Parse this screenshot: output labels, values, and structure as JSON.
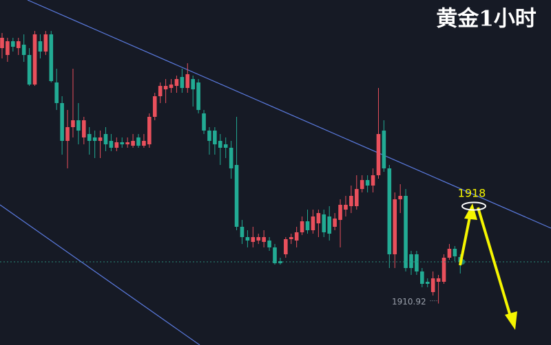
{
  "chart_data": {
    "type": "candlestick",
    "title": "黄金1小时",
    "ylim": [
      1907.9,
      1933
    ],
    "up_color": "#e9505c",
    "down_color": "#22ab94",
    "open": [
      1929.5,
      1929,
      1930,
      1929.5,
      1929.75,
      1929,
      1926.85,
      1930,
      1929.25,
      1930.5,
      1927,
      1925.5,
      1922.75,
      1923.75,
      1924.25,
      1923,
      1923.25,
      1923,
      1922.75,
      1923.25,
      1922.75,
      1922.25,
      1922.65,
      1922.5,
      1922.4,
      1923,
      1922.4,
      1922.5,
      1924.5,
      1926,
      1926.5,
      1926.6,
      1926.75,
      1927.4,
      1926.6,
      1927.25,
      1927,
      1924.75,
      1923.5,
      1923.5,
      1922.75,
      1922.5,
      1922.25,
      1921,
      1916.5,
      1915.75,
      1915.4,
      1915.5,
      1915.4,
      1915.5,
      1915,
      1914,
      1914.5,
      1915.6,
      1915.5,
      1916.1,
      1916.9,
      1916.25,
      1916.75,
      1917.4,
      1917.25,
      1916.5,
      1917,
      1917.75,
      1918,
      1918,
      1919.25,
      1919.9,
      1919.5,
      1920.25,
      1923.5,
      1920.75,
      1914.5,
      1918.5,
      1918.75,
      1914.5,
      1914.5,
      1913.25,
      1912.5,
      1911.75,
      1912.5,
      1912.5,
      1914.25,
      1914.9,
      1914.3
    ],
    "high": [
      1930.6,
      1930.25,
      1930.25,
      1930.25,
      1930.5,
      1929.5,
      1930.75,
      1930.5,
      1930.75,
      1930.75,
      1928,
      1926,
      1925,
      1928,
      1925.5,
      1924.5,
      1923.75,
      1923.5,
      1923.5,
      1923.75,
      1923.25,
      1923,
      1923,
      1923,
      1923.25,
      1923.25,
      1923.25,
      1924.75,
      1926.25,
      1927,
      1927.25,
      1927.25,
      1927.5,
      1928,
      1928.4,
      1927.5,
      1927.25,
      1925,
      1923.75,
      1923.75,
      1923.25,
      1923,
      1922.75,
      1924.5,
      1917,
      1916.25,
      1916.5,
      1916,
      1916.25,
      1915.75,
      1915.25,
      1914.25,
      1915.75,
      1916,
      1916.5,
      1917.25,
      1917.75,
      1917.75,
      1917.75,
      1917.75,
      1918,
      1917.5,
      1918.5,
      1918.75,
      1919.5,
      1920.25,
      1920.25,
      1920.25,
      1920.75,
      1926.6,
      1924.25,
      1921,
      1919,
      1919.6,
      1919.25,
      1914.75,
      1914.75,
      1913.5,
      1912.75,
      1913.25,
      1913,
      1914.5,
      1915.25,
      1915.1,
      1914.5
    ],
    "low": [
      1928.75,
      1928.5,
      1929.25,
      1929,
      1928.5,
      1926.75,
      1926.75,
      1928.75,
      1929,
      1927,
      1925,
      1921.75,
      1920.75,
      1923,
      1922.5,
      1922.5,
      1921.75,
      1921.5,
      1921.5,
      1922,
      1922,
      1922,
      1922.25,
      1922.25,
      1922.25,
      1922.25,
      1922.25,
      1922.25,
      1924.25,
      1925.5,
      1925.5,
      1926.25,
      1926.25,
      1926.25,
      1926.25,
      1925.25,
      1924.75,
      1923.25,
      1921.75,
      1921.75,
      1921,
      1921.5,
      1920,
      1916.25,
      1915.25,
      1915,
      1915,
      1915.25,
      1915,
      1914.75,
      1913.75,
      1913.75,
      1914.25,
      1915.25,
      1915,
      1915.9,
      1916,
      1916,
      1915.75,
      1915.75,
      1915.5,
      1916.25,
      1915,
      1917.25,
      1917.5,
      1917.75,
      1919,
      1919,
      1919,
      1920,
      1920.5,
      1913.5,
      1913.5,
      1917.5,
      1913.25,
      1913,
      1913,
      1912.1,
      1912.1,
      1911.5,
      1910.92,
      1912.35,
      1914.1,
      1914,
      1913.1
    ],
    "close": [
      1930.25,
      1930,
      1929.6,
      1930,
      1929,
      1926.85,
      1930.5,
      1929.25,
      1930.5,
      1927.1,
      1925.5,
      1922.75,
      1923.75,
      1924.25,
      1923.5,
      1924.25,
      1922.75,
      1922.75,
      1923,
      1922.5,
      1922.25,
      1922.65,
      1922.5,
      1922.65,
      1922.75,
      1922.4,
      1922.75,
      1924.5,
      1926,
      1926.75,
      1926.75,
      1926.85,
      1927.25,
      1926.6,
      1927.6,
      1926.5,
      1925,
      1923.5,
      1922.75,
      1922.5,
      1922.25,
      1922.25,
      1920.75,
      1916.5,
      1915.75,
      1915.5,
      1915.75,
      1915.75,
      1915.75,
      1915,
      1913.85,
      1913.85,
      1915.6,
      1915.75,
      1916.1,
      1916.9,
      1916.25,
      1917.25,
      1917.5,
      1916.1,
      1916,
      1917.1,
      1918.1,
      1918.1,
      1918.75,
      1919.25,
      1919.9,
      1919.5,
      1920.25,
      1923.25,
      1920.75,
      1914.5,
      1918.5,
      1918.75,
      1913.5,
      1913.5,
      1913.25,
      1912.35,
      1912.35,
      1912.75,
      1912.75,
      1914.25,
      1914.9,
      1914.35,
      1913.95
    ],
    "target": {
      "value": 1918,
      "label": "1918"
    },
    "low_label": {
      "value": 1910.92,
      "label": "1910.92"
    }
  }
}
